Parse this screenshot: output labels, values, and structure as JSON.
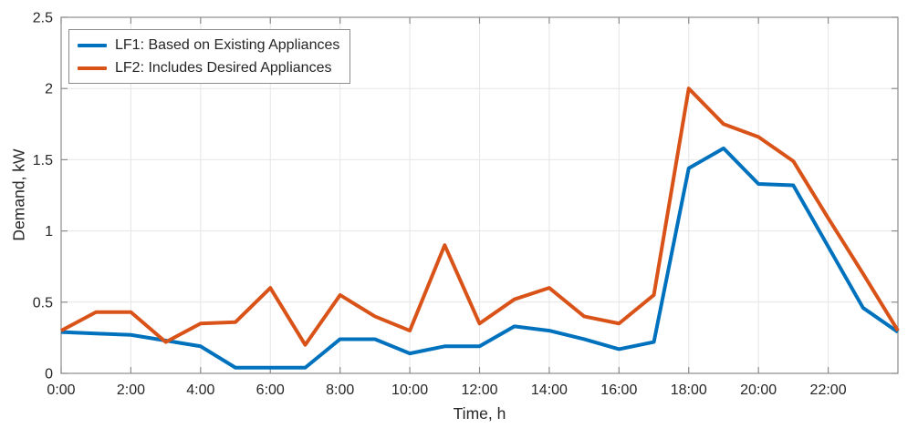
{
  "chart_data": {
    "type": "line",
    "title": "",
    "xlabel": "Time, h",
    "ylabel": "Demand, kW",
    "xlim": [
      0,
      24
    ],
    "ylim": [
      0,
      2.5
    ],
    "grid": true,
    "legend_position": "top-left-inside",
    "x": [
      0,
      1,
      2,
      3,
      4,
      5,
      6,
      7,
      8,
      9,
      10,
      11,
      12,
      13,
      14,
      15,
      16,
      17,
      18,
      19,
      20,
      21,
      22,
      23,
      24
    ],
    "series": [
      {
        "name": "LF1: Based on Existing Appliances",
        "color": "#0072BD",
        "values": [
          0.29,
          0.28,
          0.27,
          0.23,
          0.19,
          0.04,
          0.04,
          0.04,
          0.24,
          0.24,
          0.14,
          0.19,
          0.19,
          0.33,
          0.3,
          0.24,
          0.17,
          0.22,
          1.44,
          1.58,
          1.33,
          1.32,
          0.89,
          0.46,
          0.29
        ]
      },
      {
        "name": "LF2: Includes Desired Appliances",
        "color": "#D95319",
        "values": [
          0.3,
          0.43,
          0.43,
          0.22,
          0.35,
          0.36,
          0.6,
          0.2,
          0.55,
          0.4,
          0.3,
          0.9,
          0.35,
          0.52,
          0.6,
          0.4,
          0.35,
          0.55,
          2.0,
          1.75,
          1.66,
          1.49,
          1.09,
          0.7,
          0.3
        ]
      }
    ],
    "xticks": {
      "values": [
        0,
        2,
        4,
        6,
        8,
        10,
        12,
        14,
        16,
        18,
        20,
        22
      ],
      "labels": [
        "0:00",
        "2:00",
        "4:00",
        "6:00",
        "8:00",
        "10:00",
        "12:00",
        "14:00",
        "16:00",
        "18:00",
        "20:00",
        "22:00"
      ]
    },
    "yticks": {
      "values": [
        0,
        0.5,
        1,
        1.5,
        2,
        2.5
      ],
      "labels": [
        "0",
        "0.5",
        "1",
        "1.5",
        "2",
        "2.5"
      ]
    }
  },
  "colors": {
    "axis_box": "#8c8c8c",
    "grid": "#e6e6e6",
    "tick_text": "#262626",
    "background": "#ffffff"
  }
}
